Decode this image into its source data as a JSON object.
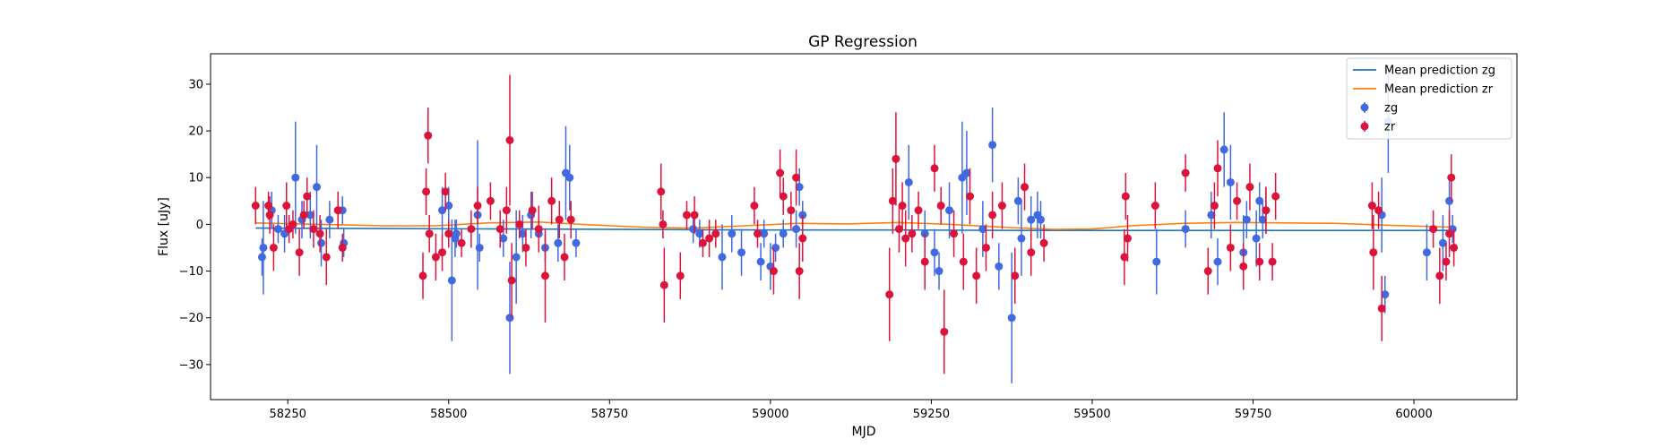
{
  "chart_data": {
    "type": "scatter",
    "title": "GP Regression",
    "xlabel": "MJD",
    "ylabel": "Flux [uJy]",
    "xlim": [
      58130,
      60160
    ],
    "ylim": [
      -37.5,
      36.5
    ],
    "xticks": [
      58250,
      58500,
      58750,
      59000,
      59250,
      59500,
      59750,
      60000
    ],
    "yticks": [
      -30,
      -20,
      -10,
      0,
      10,
      20,
      30
    ],
    "ytick_labels": [
      "−30",
      "−20",
      "−10",
      "0",
      "10",
      "20",
      "30"
    ],
    "grid": false,
    "legend_position": "top-right",
    "legend": [
      {
        "label": "Mean prediction zg",
        "kind": "line",
        "color": "#1f77b4"
      },
      {
        "label": "Mean prediction zr",
        "kind": "line",
        "color": "#ff7f0e"
      },
      {
        "label": "zg",
        "kind": "errorbar",
        "color": "#4169e1"
      },
      {
        "label": "zr",
        "kind": "errorbar",
        "color": "#dc143c"
      }
    ],
    "mean_lines": [
      {
        "name": "Mean prediction zg",
        "color": "#1f77b4",
        "x": [
          58200,
          58400,
          58600,
          58800,
          59000,
          59200,
          59400,
          59600,
          59800,
          60000,
          60060
        ],
        "y": [
          -0.8,
          -0.9,
          -1.0,
          -1.1,
          -1.2,
          -1.2,
          -1.3,
          -1.3,
          -1.3,
          -1.3,
          -1.3
        ]
      },
      {
        "name": "Mean prediction zr",
        "color": "#ff7f0e",
        "x": [
          58200,
          58300,
          58400,
          58480,
          58560,
          58640,
          58720,
          58800,
          58880,
          58960,
          59040,
          59120,
          59200,
          59280,
          59360,
          59440,
          59500,
          59560,
          59640,
          59720,
          59800,
          59880,
          59960,
          60060
        ],
        "y": [
          0.3,
          0.0,
          -0.3,
          -0.3,
          0.3,
          0.5,
          -0.1,
          -0.6,
          -0.8,
          -0.3,
          0.2,
          0.1,
          0.4,
          0.0,
          -0.6,
          -1.1,
          -1.0,
          -0.3,
          0.2,
          0.4,
          0.3,
          0.2,
          -0.2,
          -0.6
        ]
      }
    ],
    "series": [
      {
        "name": "zg",
        "color": "#4169e1",
        "points": [
          [
            58210,
            -7,
            4
          ],
          [
            58212,
            -5,
            10
          ],
          [
            58225,
            3,
            4
          ],
          [
            58235,
            -1,
            3
          ],
          [
            58245,
            -2,
            4
          ],
          [
            58262,
            10,
            12
          ],
          [
            58272,
            1,
            4
          ],
          [
            58285,
            2,
            5
          ],
          [
            58295,
            8,
            9
          ],
          [
            58302,
            -4,
            5
          ],
          [
            58315,
            1,
            4
          ],
          [
            58335,
            3,
            3
          ],
          [
            58337,
            -4,
            3
          ],
          [
            58490,
            3,
            5
          ],
          [
            58500,
            4,
            4
          ],
          [
            58505,
            -12,
            13
          ],
          [
            58510,
            -3,
            4
          ],
          [
            58512,
            -2,
            3
          ],
          [
            58545,
            2,
            16
          ],
          [
            58548,
            -5,
            3
          ],
          [
            58585,
            -3,
            4
          ],
          [
            58595,
            -20,
            12
          ],
          [
            58605,
            -7,
            10
          ],
          [
            58615,
            -2,
            4
          ],
          [
            58628,
            2,
            5
          ],
          [
            58640,
            -2,
            3
          ],
          [
            58650,
            -5,
            3
          ],
          [
            58670,
            -4,
            4
          ],
          [
            58682,
            11,
            10
          ],
          [
            58688,
            10,
            7
          ],
          [
            58698,
            -4,
            3
          ],
          [
            58880,
            -1,
            3
          ],
          [
            58890,
            -2,
            3
          ],
          [
            58925,
            -7,
            7
          ],
          [
            58940,
            -2,
            4
          ],
          [
            58955,
            -6,
            5
          ],
          [
            58985,
            -8,
            4
          ],
          [
            58990,
            -2,
            3
          ],
          [
            59000,
            -9,
            5
          ],
          [
            59008,
            -5,
            3
          ],
          [
            59020,
            -2,
            3
          ],
          [
            59040,
            -1,
            4
          ],
          [
            59045,
            8,
            4
          ],
          [
            59050,
            2,
            3
          ],
          [
            59215,
            9,
            8
          ],
          [
            59240,
            -2,
            5
          ],
          [
            59255,
            -6,
            5
          ],
          [
            59262,
            -10,
            4
          ],
          [
            59278,
            3,
            6
          ],
          [
            59298,
            10,
            12
          ],
          [
            59305,
            11,
            9
          ],
          [
            59330,
            -1,
            6
          ],
          [
            59345,
            17,
            8
          ],
          [
            59355,
            -9,
            5
          ],
          [
            59375,
            -20,
            14
          ],
          [
            59385,
            5,
            5
          ],
          [
            59390,
            -3,
            8
          ],
          [
            59405,
            1,
            5
          ],
          [
            59415,
            2,
            5
          ],
          [
            59420,
            1,
            4
          ],
          [
            59600,
            -8,
            7
          ],
          [
            59645,
            -1,
            4
          ],
          [
            59685,
            2,
            5
          ],
          [
            59695,
            -8,
            5
          ],
          [
            59705,
            16,
            8
          ],
          [
            59715,
            9,
            8
          ],
          [
            59735,
            -6,
            8
          ],
          [
            59740,
            1,
            4
          ],
          [
            59755,
            -3,
            6
          ],
          [
            59760,
            5,
            4
          ],
          [
            59765,
            1,
            4
          ],
          [
            59770,
            3,
            5
          ],
          [
            59950,
            2,
            8
          ],
          [
            59955,
            -15,
            4
          ],
          [
            59960,
            22,
            11
          ],
          [
            60020,
            -6,
            6
          ],
          [
            60045,
            -4,
            6
          ],
          [
            60055,
            5,
            5
          ],
          [
            60060,
            -1,
            3
          ]
        ]
      },
      {
        "name": "zr",
        "color": "#dc143c",
        "points": [
          [
            58200,
            4,
            4
          ],
          [
            58220,
            4,
            3
          ],
          [
            58222,
            2,
            4
          ],
          [
            58228,
            -5,
            5
          ],
          [
            58248,
            4,
            5
          ],
          [
            58252,
            -1,
            3
          ],
          [
            58258,
            0,
            3
          ],
          [
            58268,
            -6,
            5
          ],
          [
            58275,
            2,
            3
          ],
          [
            58280,
            6,
            4
          ],
          [
            58290,
            -1,
            4
          ],
          [
            58300,
            -2,
            4
          ],
          [
            58310,
            -7,
            6
          ],
          [
            58328,
            3,
            4
          ],
          [
            58335,
            -5,
            3
          ],
          [
            58460,
            -11,
            5
          ],
          [
            58465,
            7,
            5
          ],
          [
            58468,
            19,
            6
          ],
          [
            58470,
            -2,
            4
          ],
          [
            58480,
            -7,
            5
          ],
          [
            58490,
            -6,
            4
          ],
          [
            58495,
            7,
            4
          ],
          [
            58500,
            -2,
            3
          ],
          [
            58520,
            -4,
            3
          ],
          [
            58535,
            -1,
            4
          ],
          [
            58545,
            4,
            4
          ],
          [
            58565,
            5,
            4
          ],
          [
            58580,
            -1,
            4
          ],
          [
            58590,
            3,
            5
          ],
          [
            58595,
            18,
            14
          ],
          [
            58598,
            -12,
            8
          ],
          [
            58610,
            0,
            3
          ],
          [
            58620,
            -5,
            4
          ],
          [
            58630,
            3,
            4
          ],
          [
            58640,
            -1,
            5
          ],
          [
            58650,
            -11,
            10
          ],
          [
            58660,
            5,
            5
          ],
          [
            58672,
            1,
            4
          ],
          [
            58680,
            -7,
            5
          ],
          [
            58690,
            1,
            4
          ],
          [
            58830,
            7,
            6
          ],
          [
            58833,
            0,
            3
          ],
          [
            58835,
            -13,
            8
          ],
          [
            58860,
            -11,
            5
          ],
          [
            58870,
            2,
            3
          ],
          [
            58882,
            2,
            4
          ],
          [
            58895,
            -4,
            3
          ],
          [
            58905,
            -3,
            4
          ],
          [
            58915,
            -2,
            3
          ],
          [
            58975,
            4,
            4
          ],
          [
            58980,
            -2,
            3
          ],
          [
            59005,
            -10,
            5
          ],
          [
            59015,
            11,
            5
          ],
          [
            59020,
            6,
            4
          ],
          [
            59032,
            3,
            4
          ],
          [
            59040,
            10,
            6
          ],
          [
            59045,
            -10,
            6
          ],
          [
            59050,
            -3,
            5
          ],
          [
            59185,
            -15,
            10
          ],
          [
            59190,
            5,
            7
          ],
          [
            59195,
            14,
            10
          ],
          [
            59200,
            -1,
            5
          ],
          [
            59205,
            4,
            5
          ],
          [
            59210,
            -3,
            6
          ],
          [
            59220,
            -2,
            4
          ],
          [
            59230,
            3,
            4
          ],
          [
            59240,
            -8,
            6
          ],
          [
            59255,
            12,
            5
          ],
          [
            59265,
            4,
            4
          ],
          [
            59270,
            -23,
            9
          ],
          [
            59285,
            -2,
            5
          ],
          [
            59300,
            -8,
            6
          ],
          [
            59310,
            6,
            6
          ],
          [
            59320,
            -11,
            6
          ],
          [
            59335,
            -5,
            5
          ],
          [
            59345,
            2,
            5
          ],
          [
            59360,
            4,
            5
          ],
          [
            59380,
            -11,
            6
          ],
          [
            59395,
            8,
            5
          ],
          [
            59405,
            -6,
            5
          ],
          [
            59425,
            -4,
            4
          ],
          [
            59550,
            -7,
            6
          ],
          [
            59552,
            6,
            5
          ],
          [
            59555,
            -3,
            5
          ],
          [
            59598,
            4,
            5
          ],
          [
            59645,
            11,
            4
          ],
          [
            59680,
            -10,
            5
          ],
          [
            59690,
            4,
            5
          ],
          [
            59695,
            12,
            6
          ],
          [
            59715,
            -5,
            5
          ],
          [
            59725,
            5,
            4
          ],
          [
            59735,
            -9,
            5
          ],
          [
            59745,
            8,
            5
          ],
          [
            59760,
            -8,
            4
          ],
          [
            59770,
            3,
            5
          ],
          [
            59780,
            -8,
            4
          ],
          [
            59785,
            6,
            5
          ],
          [
            59935,
            4,
            5
          ],
          [
            59937,
            -6,
            8
          ],
          [
            59945,
            3,
            4
          ],
          [
            59950,
            -18,
            7
          ],
          [
            60030,
            -1,
            4
          ],
          [
            60040,
            -11,
            6
          ],
          [
            60050,
            -8,
            4
          ],
          [
            60055,
            -2,
            5
          ],
          [
            60058,
            10,
            5
          ],
          [
            60062,
            -5,
            4
          ]
        ]
      }
    ]
  }
}
